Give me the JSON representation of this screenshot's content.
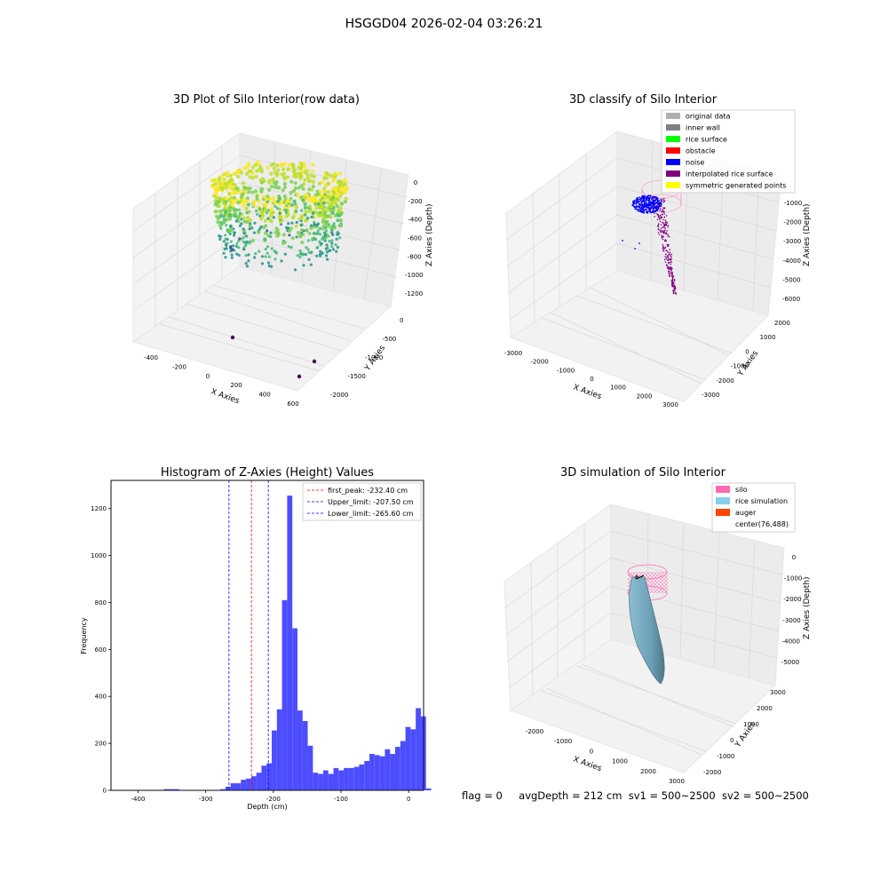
{
  "figure": {
    "suptitle": "HSGGD04 2026-02-04 03:26:21"
  },
  "footer": {
    "flag": "flag = 0",
    "avg_depth": "avgDepth = 212 cm",
    "sv1": "sv1 = 500~2500",
    "sv2": "sv2 = 500~2500"
  },
  "chart_data": [
    {
      "type": "scatter3d",
      "title": "3D Plot of Silo Interior(row data)",
      "xlabel": "X Axies",
      "ylabel": "Y Axies",
      "zlabel": "Z Axies (Depth)",
      "x_ticks": [
        "-400",
        "-200",
        "0",
        "200",
        "400",
        "600"
      ],
      "y_ticks": [
        "0",
        "-500",
        "-1000",
        "-1500",
        "-2000"
      ],
      "z_ticks": [
        "0",
        "-200",
        "-400",
        "-600",
        "-800",
        "-1000",
        "-1200"
      ],
      "xlim": [
        -450,
        650
      ],
      "ylim": [
        -2100,
        100
      ],
      "zlim": [
        -1300,
        50
      ],
      "colormap": "viridis",
      "outliers": [
        {
          "x": 330,
          "y": -1900,
          "z": -1250
        },
        {
          "x": 500,
          "y": -1800,
          "z": -1250
        },
        {
          "x": -110,
          "y": -1300,
          "z": -1250
        }
      ]
    },
    {
      "type": "scatter3d",
      "title": "3D classify of Silo Interior",
      "xlabel": "X Axies",
      "ylabel": "Y Axies",
      "zlabel": "Z Axies (Depth)",
      "x_ticks": [
        "-3000",
        "-2000",
        "-1000",
        "0",
        "1000",
        "2000",
        "3000"
      ],
      "y_ticks": [
        "2000",
        "1000",
        "0",
        "-1000",
        "-2000",
        "-3000"
      ],
      "z_ticks": [
        "-1000",
        "-2000",
        "-3000",
        "-4000",
        "-5000",
        "-6000"
      ],
      "xlim": [
        -3200,
        3200
      ],
      "ylim": [
        -3400,
        2400
      ],
      "zlim": [
        -6000,
        0
      ],
      "legend_position": "top-right",
      "legend": [
        {
          "label": "original data",
          "color": "#b0b0b0"
        },
        {
          "label": "inner wall",
          "color": "#808080"
        },
        {
          "label": "rice surface",
          "color": "#00ff00"
        },
        {
          "label": "obstacle",
          "color": "#ff0000"
        },
        {
          "label": "noise",
          "color": "#0000ff"
        },
        {
          "label": "interpolated rice surface",
          "color": "#800080"
        },
        {
          "label": "symmetric generated points",
          "color": "#ffff00"
        }
      ]
    },
    {
      "type": "bar",
      "title": "Histogram of Z-Axies (Height) Values",
      "xlabel": "Depth (cm)",
      "ylabel": "Frequency",
      "xlim": [
        -440,
        22
      ],
      "ylim": [
        0,
        1320
      ],
      "x_ticks": [
        -400,
        -300,
        -200,
        -100,
        0
      ],
      "y_ticks": [
        0,
        200,
        400,
        600,
        800,
        1000,
        1200
      ],
      "bar_color": "#4d4dff",
      "bin_edges_start": -400,
      "bin_width": 7.6,
      "values": [
        0,
        0,
        0,
        0,
        2,
        5,
        5,
        5,
        0,
        0,
        0,
        0,
        0,
        2,
        2,
        2,
        5,
        15,
        30,
        30,
        45,
        50,
        60,
        75,
        105,
        115,
        255,
        345,
        810,
        1255,
        690,
        340,
        295,
        190,
        75,
        70,
        85,
        70,
        95,
        85,
        95,
        95,
        100,
        110,
        125,
        155,
        150,
        145,
        175,
        155,
        185,
        210,
        270,
        260,
        350,
        315,
        8
      ],
      "lines": [
        {
          "label": "first_peak: -232.40 cm",
          "x": -232.4,
          "color": "#ff0000"
        },
        {
          "label": "Upper_limit: -207.50 cm",
          "x": -207.5,
          "color": "#0000ff"
        },
        {
          "label": "Lower_limit: -265.60 cm",
          "x": -265.6,
          "color": "#0000ff"
        }
      ],
      "legend_position": "top-right"
    },
    {
      "type": "surface3d",
      "title": "3D simulation of Silo Interior",
      "xlabel": "X Axies",
      "ylabel": "Y Axies",
      "zlabel": "Z Axies (Depth)",
      "x_ticks": [
        "-2000",
        "-1000",
        "0",
        "1000",
        "2000",
        "3000"
      ],
      "y_ticks": [
        "3000",
        "2000",
        "1000",
        "0",
        "-1000",
        "-2000"
      ],
      "z_ticks": [
        "0",
        "-1000",
        "-2000",
        "-3000",
        "-4000",
        "-5000"
      ],
      "xlim": [
        -2600,
        3100
      ],
      "ylim": [
        -2400,
        3300
      ],
      "zlim": [
        -5500,
        200
      ],
      "legend_position": "top-right",
      "legend": [
        {
          "label": "silo",
          "color": "#ff69b4"
        },
        {
          "label": "rice simulation",
          "color": "#87ceeb"
        },
        {
          "label": "auger",
          "color": "#ff4500"
        },
        {
          "label": "center(76,488)",
          "color": "#ffffff"
        }
      ]
    }
  ]
}
